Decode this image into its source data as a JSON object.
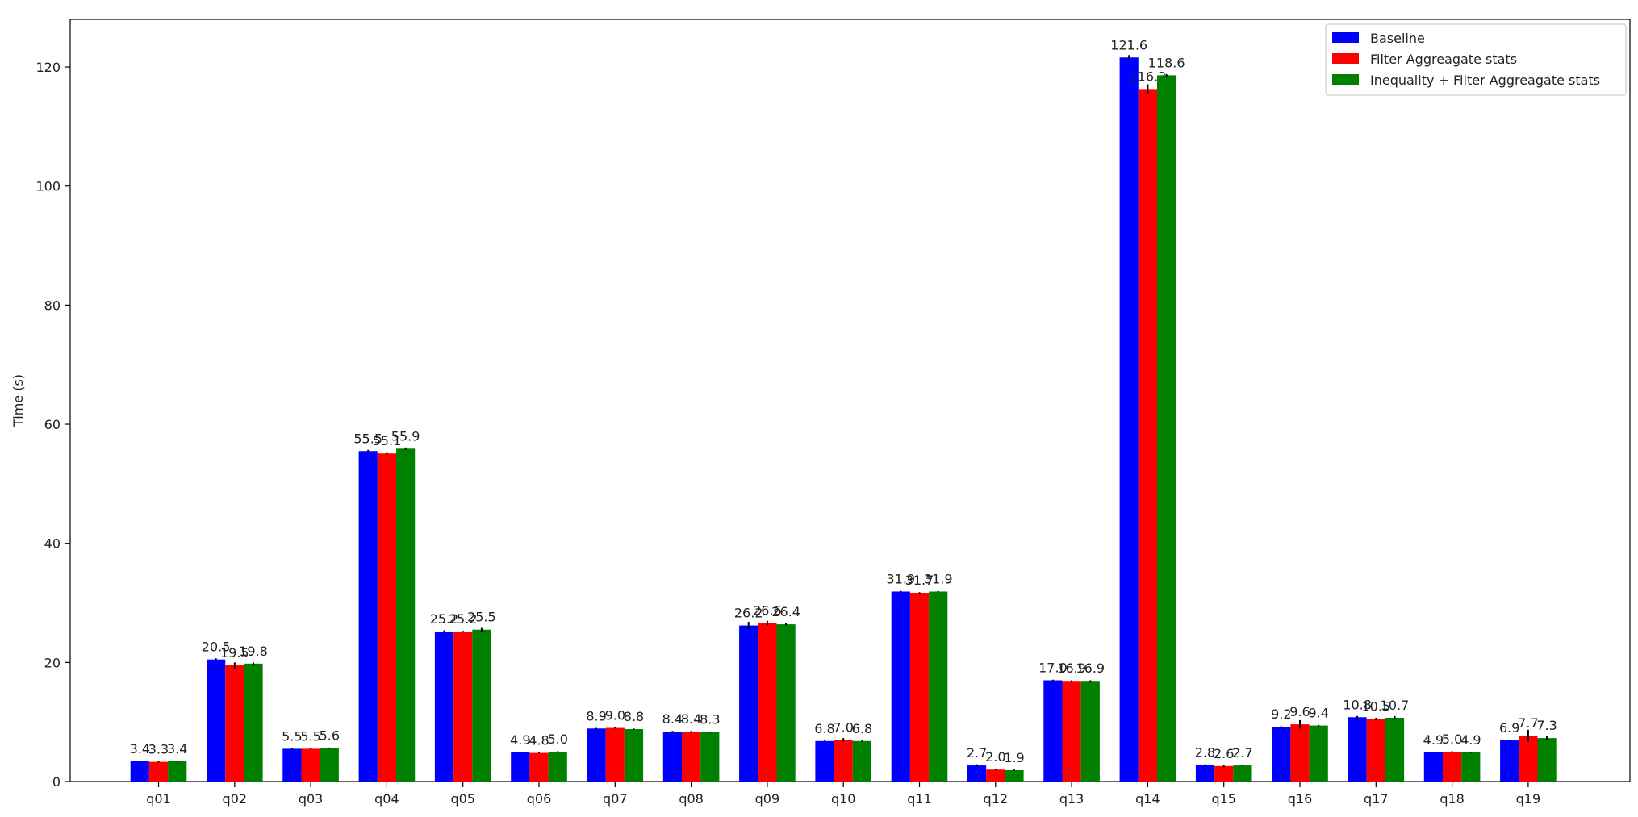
{
  "chart_data": {
    "type": "bar",
    "title": "",
    "xlabel": "",
    "ylabel": "Time (s)",
    "ylim": [
      0,
      128
    ],
    "yticks": [
      0,
      20,
      40,
      60,
      80,
      100,
      120
    ],
    "categories": [
      "q01",
      "q02",
      "q03",
      "q04",
      "q05",
      "q06",
      "q07",
      "q08",
      "q09",
      "q10",
      "q11",
      "q12",
      "q13",
      "q14",
      "q15",
      "q16",
      "q17",
      "q18",
      "q19"
    ],
    "series": [
      {
        "name": "Baseline",
        "color": "#0000ff",
        "values": [
          3.4,
          20.5,
          5.5,
          55.5,
          25.2,
          4.9,
          8.9,
          8.4,
          26.2,
          6.8,
          31.9,
          2.7,
          17.0,
          121.6,
          2.8,
          9.2,
          10.8,
          4.9,
          6.9
        ],
        "errors": [
          0.1,
          0.2,
          0.1,
          0.2,
          0.2,
          0.1,
          0.1,
          0.1,
          0.6,
          0.1,
          0.1,
          0.2,
          0.1,
          0.4,
          0.1,
          0.1,
          0.2,
          0.1,
          0.1
        ]
      },
      {
        "name": "Filter Aggreagate stats",
        "color": "#ff0000",
        "values": [
          3.3,
          19.5,
          5.5,
          55.1,
          25.2,
          4.8,
          9.0,
          8.4,
          26.6,
          7.0,
          31.7,
          2.0,
          16.9,
          116.3,
          2.6,
          9.6,
          10.5,
          5.0,
          7.7
        ],
        "errors": [
          0.1,
          0.5,
          0.1,
          0.1,
          0.1,
          0.1,
          0.1,
          0.1,
          0.4,
          0.3,
          0.1,
          0.1,
          0.1,
          0.8,
          0.2,
          0.7,
          0.2,
          0.1,
          1.0
        ]
      },
      {
        "name": "Inequality + Filter Aggreagate stats",
        "color": "#008000",
        "values": [
          3.4,
          19.8,
          5.6,
          55.9,
          25.5,
          5.0,
          8.8,
          8.3,
          26.4,
          6.8,
          31.9,
          1.9,
          16.9,
          118.6,
          2.7,
          9.4,
          10.7,
          4.9,
          7.3
        ],
        "errors": [
          0.1,
          0.2,
          0.1,
          0.2,
          0.3,
          0.1,
          0.1,
          0.1,
          0.2,
          0.1,
          0.1,
          0.1,
          0.1,
          0.2,
          0.1,
          0.1,
          0.3,
          0.1,
          0.4
        ]
      }
    ],
    "legend": {
      "position": "top-right"
    },
    "grid": false
  }
}
